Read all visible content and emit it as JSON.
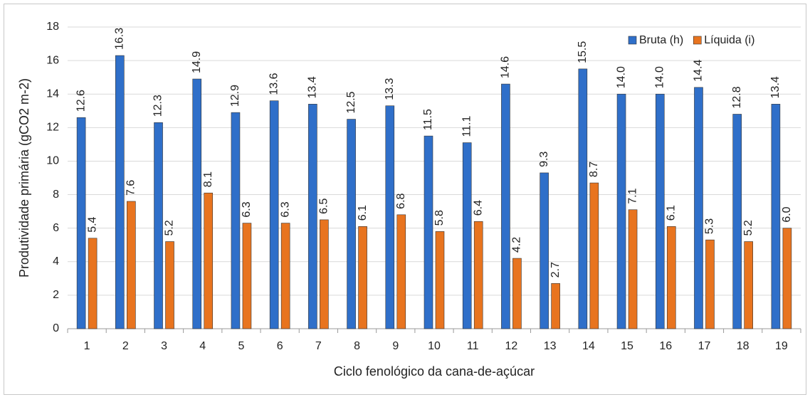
{
  "chart_data": {
    "type": "bar",
    "x_label": "Ciclo fenológico da cana-de-açúcar",
    "y_label": "Produtividade primária (gCO2 m-2)",
    "categories": [
      "1",
      "2",
      "3",
      "4",
      "5",
      "6",
      "7",
      "8",
      "9",
      "10",
      "11",
      "12",
      "13",
      "14",
      "15",
      "16",
      "17",
      "18",
      "19"
    ],
    "series": [
      {
        "name": "Bruta (h)",
        "color": "#2f6fc9",
        "values": [
          12.6,
          16.3,
          12.3,
          14.9,
          12.9,
          13.6,
          13.4,
          12.5,
          13.3,
          11.5,
          11.1,
          14.6,
          9.3,
          15.5,
          14,
          14,
          14.4,
          12.8,
          13.4
        ],
        "value_labels": [
          "12.6",
          "16.3",
          "12.3",
          "14.9",
          "12.9",
          "13.6",
          "13.4",
          "12.5",
          "13.3",
          "11.5",
          "11.1",
          "14.6",
          "9.3",
          "15.5",
          "14.0",
          "14.0",
          "14.4",
          "12.8",
          "13.4"
        ]
      },
      {
        "name": "Líquida (i)",
        "color": "#e8741f",
        "values": [
          5.4,
          7.6,
          5.2,
          8.1,
          6.3,
          6.3,
          6.5,
          6.1,
          6.8,
          5.8,
          6.4,
          4.2,
          2.7,
          8.7,
          7.1,
          6.1,
          5.3,
          5.2,
          6
        ],
        "value_labels": [
          "5.4",
          "7.6",
          "5.2",
          "8.1",
          "6.3",
          "6.3",
          "6.5",
          "6.1",
          "6.8",
          "5.8",
          "6.4",
          "4.2",
          "2.7",
          "8.7",
          "7.1",
          "6.1",
          "5.3",
          "5.2",
          "6.0"
        ]
      }
    ],
    "ylim": [
      0,
      18
    ],
    "yticks": [
      0,
      2,
      4,
      6,
      8,
      10,
      12,
      14,
      16,
      18
    ],
    "grid": true,
    "legend": "top-right"
  }
}
